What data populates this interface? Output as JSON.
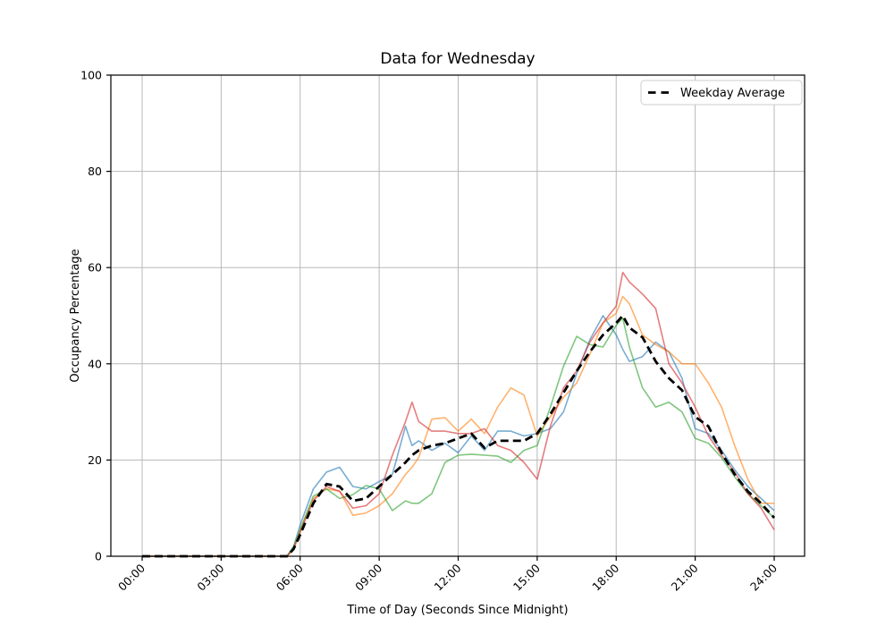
{
  "chart_data": {
    "type": "line",
    "title": "Data for Wednesday",
    "xlabel": "Time of Day (Seconds Since Midnight)",
    "ylabel": "Occupancy Percentage",
    "ylim": [
      0,
      100
    ],
    "y_ticks": [
      0,
      20,
      40,
      60,
      80,
      100
    ],
    "x_tick_hours": [
      0,
      3,
      6,
      9,
      12,
      15,
      18,
      21,
      24
    ],
    "x_tick_labels": [
      "00:00",
      "03:00",
      "06:00",
      "09:00",
      "12:00",
      "15:00",
      "18:00",
      "21:00",
      "24:00"
    ],
    "grid": true,
    "grid_color": "#b8b8b8",
    "spine_color": "#000000",
    "legend": {
      "position": "upper right",
      "entries": [
        {
          "label": "Weekday Average",
          "style": "dashed",
          "color": "#000000"
        }
      ]
    },
    "x_hours": [
      0,
      0.5,
      1,
      1.5,
      2,
      2.5,
      3,
      3.5,
      4,
      4.5,
      5,
      5.5,
      5.75,
      6,
      6.5,
      7,
      7.5,
      8,
      8.5,
      9,
      9.5,
      10,
      10.25,
      10.5,
      11,
      11.5,
      12,
      12.5,
      13,
      13.5,
      14,
      14.5,
      15,
      15.5,
      16,
      16.5,
      17,
      17.5,
      18,
      18.25,
      18.5,
      19,
      19.5,
      20,
      20.5,
      21,
      21.5,
      22,
      22.5,
      23,
      23.5,
      24
    ],
    "series": [
      {
        "name": "unlabeled-day-series-1",
        "color": "#1f77b4",
        "alpha": 0.6,
        "style": "solid",
        "width": 1.6,
        "values": [
          0,
          0,
          0,
          0,
          0,
          0,
          0,
          0,
          0,
          0,
          0,
          0,
          2,
          6.5,
          14,
          17.5,
          18.5,
          14.5,
          14,
          15.5,
          17,
          27,
          23,
          24,
          22,
          23.5,
          21.5,
          25,
          22,
          26,
          26,
          25,
          25.5,
          26.5,
          30,
          38,
          45,
          50,
          46,
          43,
          40.5,
          41.5,
          44.5,
          42.5,
          37,
          26.5,
          25.5,
          22,
          18,
          14.5,
          12,
          9.5
        ]
      },
      {
        "name": "unlabeled-day-series-2",
        "color": "#ff7f0e",
        "alpha": 0.6,
        "style": "solid",
        "width": 1.6,
        "values": [
          0,
          0,
          0,
          0,
          0,
          0,
          0,
          0,
          0,
          0,
          0,
          0,
          1.5,
          5.5,
          12,
          14,
          13.5,
          8.5,
          9,
          10.5,
          13,
          17,
          18.5,
          20.5,
          28.5,
          28.8,
          26,
          28.5,
          25.5,
          31,
          35,
          33.5,
          25,
          29,
          33,
          36,
          42,
          48.5,
          50.5,
          54,
          52.5,
          46,
          44,
          42.5,
          40,
          40,
          36,
          31,
          23,
          16,
          11,
          11
        ]
      },
      {
        "name": "unlabeled-day-series-3",
        "color": "#2ca02c",
        "alpha": 0.6,
        "style": "solid",
        "width": 1.6,
        "values": [
          0,
          0,
          0,
          0,
          0,
          0,
          0,
          0,
          0,
          0,
          0,
          0,
          2,
          5.5,
          12.5,
          14,
          12,
          12.8,
          14.7,
          14,
          9.5,
          11.5,
          11,
          11,
          13,
          19.5,
          21,
          21.2,
          21,
          20.8,
          19.5,
          22,
          23,
          31,
          39.5,
          45.7,
          44,
          43.5,
          48,
          49.5,
          43.5,
          35,
          31,
          32,
          30,
          24.5,
          23.5,
          20.5,
          16.5,
          13,
          10.5,
          8
        ]
      },
      {
        "name": "unlabeled-day-series-4",
        "color": "#d62728",
        "alpha": 0.6,
        "style": "solid",
        "width": 1.6,
        "values": [
          0,
          0,
          0,
          0,
          0,
          0,
          0,
          0,
          0,
          0,
          0,
          0,
          1.5,
          5,
          11.5,
          14.5,
          13.5,
          10,
          10.5,
          13,
          21,
          28,
          32,
          28,
          26,
          26,
          25.5,
          25.5,
          26.5,
          23,
          22,
          19.5,
          16,
          27,
          35,
          38.5,
          44.5,
          48.5,
          52,
          59,
          57,
          54.5,
          51.5,
          40,
          36,
          31,
          25,
          21,
          17.5,
          13,
          10,
          5.5
        ]
      },
      {
        "name": "Weekday Average",
        "color": "#000000",
        "alpha": 1,
        "style": "dashed",
        "width": 2.8,
        "values": [
          0,
          0,
          0,
          0,
          0,
          0,
          0,
          0,
          0,
          0,
          0,
          0,
          1.5,
          4.5,
          11,
          15,
          14.5,
          11.5,
          12,
          14.5,
          17,
          19.5,
          21,
          22,
          23,
          23.5,
          24.5,
          25.5,
          22.5,
          24,
          24,
          24,
          25.5,
          29.5,
          34,
          38.5,
          42.5,
          46,
          48.5,
          50,
          47.5,
          45.5,
          40.5,
          37,
          34.5,
          29,
          27,
          21.5,
          17,
          13.5,
          11,
          8
        ]
      }
    ]
  }
}
